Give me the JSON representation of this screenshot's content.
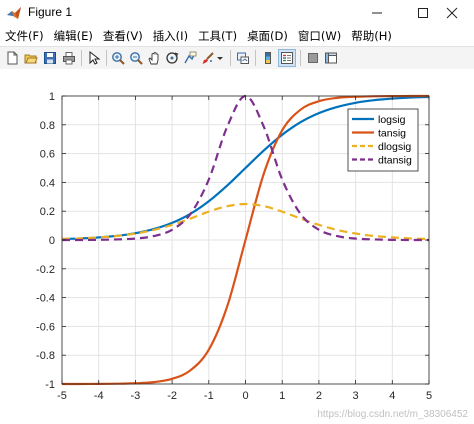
{
  "window": {
    "title": "Figure 1",
    "controls": {
      "minimize": "—",
      "maximize": "☐",
      "close": "✕"
    }
  },
  "menu": {
    "items": [
      "文件(F)",
      "编辑(E)",
      "查看(V)",
      "插入(I)",
      "工具(T)",
      "桌面(D)",
      "窗口(W)",
      "帮助(H)"
    ]
  },
  "toolbar": {
    "icons": [
      "new-figure-icon",
      "open-file-icon",
      "save-icon",
      "print-icon",
      "edit-plot-arrow-icon",
      "zoom-in-icon",
      "zoom-out-icon",
      "pan-hand-icon",
      "rotate-3d-icon",
      "data-cursor-icon",
      "brush-icon",
      "brush-dropdown-icon",
      "link-plot-icon",
      "insert-colorbar-icon",
      "insert-legend-icon",
      "hide-plot-tools-icon",
      "show-plot-tools-icon"
    ]
  },
  "chart_data": {
    "type": "line",
    "xlim": [
      -5,
      5
    ],
    "ylim": [
      -1,
      1
    ],
    "xticks": [
      -5,
      -4,
      -3,
      -2,
      -1,
      0,
      1,
      2,
      3,
      4,
      5
    ],
    "yticks": [
      -1,
      -0.8,
      -0.6,
      -0.4,
      -0.2,
      0,
      0.2,
      0.4,
      0.6,
      0.8,
      1
    ],
    "x": [
      -5,
      -4.5,
      -4,
      -3.5,
      -3,
      -2.5,
      -2,
      -1.5,
      -1,
      -0.5,
      0,
      0.5,
      1,
      1.5,
      2,
      2.5,
      3,
      3.5,
      4,
      4.5,
      5
    ],
    "grid": true,
    "legend_position": "top-right",
    "series": [
      {
        "name": "logsig",
        "color": "#0072BD",
        "dash": "solid",
        "values": [
          0.007,
          0.011,
          0.018,
          0.029,
          0.047,
          0.076,
          0.119,
          0.182,
          0.269,
          0.378,
          0.5,
          0.622,
          0.731,
          0.818,
          0.881,
          0.924,
          0.953,
          0.971,
          0.982,
          0.989,
          0.993
        ]
      },
      {
        "name": "tansig",
        "color": "#D95319",
        "dash": "solid",
        "values": [
          -1.0,
          -1.0,
          -0.999,
          -0.998,
          -0.995,
          -0.987,
          -0.964,
          -0.905,
          -0.762,
          -0.462,
          0.0,
          0.462,
          0.762,
          0.905,
          0.964,
          0.987,
          0.995,
          0.998,
          0.999,
          1.0,
          1.0
        ]
      },
      {
        "name": "dlogsig",
        "color": "#EDB120",
        "dash": "dashed",
        "values": [
          0.007,
          0.011,
          0.018,
          0.028,
          0.045,
          0.07,
          0.105,
          0.149,
          0.197,
          0.235,
          0.25,
          0.235,
          0.197,
          0.149,
          0.105,
          0.07,
          0.045,
          0.028,
          0.018,
          0.011,
          0.007
        ]
      },
      {
        "name": "dtansig",
        "color": "#7E2F8E",
        "dash": "dashed",
        "values": [
          0.0,
          0.0,
          0.001,
          0.004,
          0.01,
          0.027,
          0.071,
          0.181,
          0.42,
          0.786,
          1.0,
          0.786,
          0.42,
          0.181,
          0.071,
          0.027,
          0.01,
          0.004,
          0.001,
          0.0,
          0.0
        ]
      }
    ]
  },
  "watermark": "https://blog.csdn.net/m_38306452"
}
